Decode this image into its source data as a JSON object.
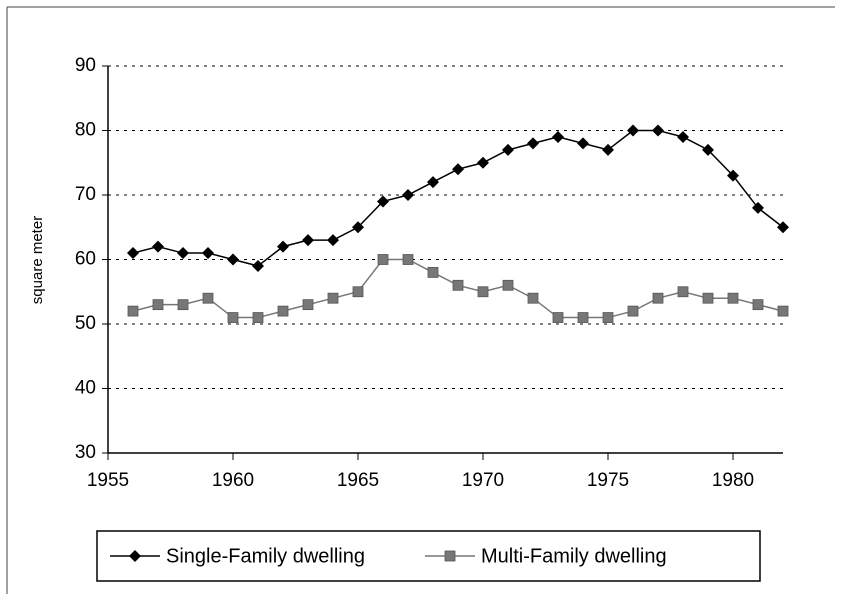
{
  "chart_data": {
    "type": "line",
    "ylabel": "square meter",
    "x": [
      1956,
      1957,
      1958,
      1959,
      1960,
      1961,
      1962,
      1963,
      1964,
      1965,
      1966,
      1967,
      1968,
      1969,
      1970,
      1971,
      1972,
      1973,
      1974,
      1975,
      1976,
      1977,
      1978,
      1979,
      1980,
      1981,
      1982
    ],
    "series": [
      {
        "name": "Single-Family dwelling",
        "color": "#000000",
        "marker": "diamond",
        "values": [
          61,
          62,
          61,
          61,
          60,
          59,
          62,
          63,
          63,
          65,
          69,
          70,
          72,
          74,
          75,
          77,
          78,
          79,
          78,
          77,
          80,
          80,
          79,
          77,
          73,
          68,
          65
        ]
      },
      {
        "name": "Multi-Family dwelling",
        "color": "#777777",
        "marker": "square",
        "values": [
          52,
          53,
          53,
          54,
          51,
          51,
          52,
          53,
          54,
          55,
          60,
          60,
          58,
          56,
          55,
          56,
          54,
          51,
          51,
          51,
          52,
          54,
          55,
          54,
          54,
          53,
          52
        ]
      }
    ],
    "xlim": [
      1955,
      1982
    ],
    "xticks": [
      1955,
      1960,
      1965,
      1970,
      1975,
      1980
    ],
    "ylim": [
      30,
      90
    ],
    "yticks": [
      30,
      40,
      50,
      60,
      70,
      80,
      90
    ],
    "grid": true,
    "legend": "bottom"
  }
}
